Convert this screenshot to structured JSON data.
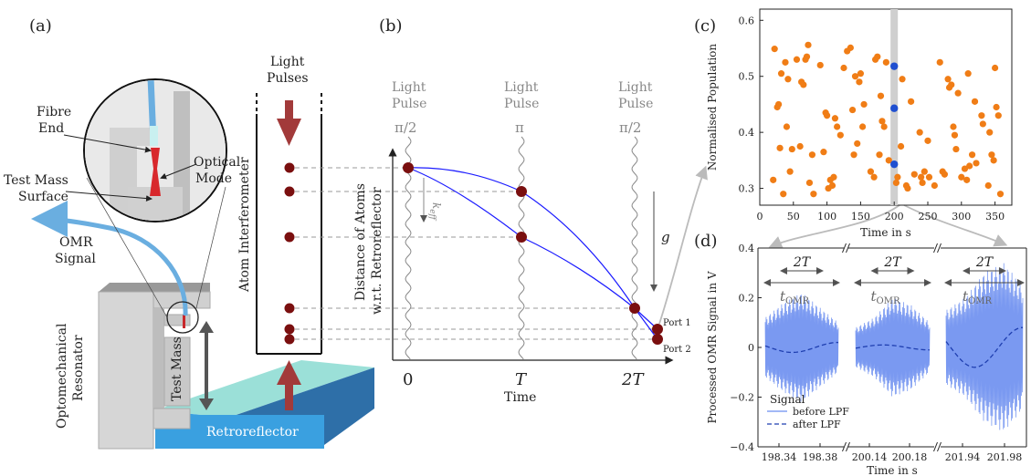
{
  "panels": {
    "a": "(a)",
    "b": "(b)",
    "c": "(c)",
    "d": "(d)"
  },
  "panel_a": {
    "fibre_end": [
      "Fibre",
      "End"
    ],
    "optical_mode": [
      "Optical",
      "Mode"
    ],
    "test_mass_surface": [
      "Test Mass",
      "Surface"
    ],
    "omr_signal": [
      "OMR",
      "Signal"
    ],
    "optomechanical_resonator": [
      "Optomechanical",
      "Resonator"
    ],
    "test_mass": "Test Mass",
    "retroreflector": "Retroreflector",
    "light_pulses": [
      "Light",
      "Pulses"
    ],
    "atom_interferometer": "Atom Interferometer"
  },
  "panel_b": {
    "pulses": [
      {
        "top": "Light",
        "mid": "Pulse",
        "phase": "π/2"
      },
      {
        "top": "Light",
        "mid": "Pulse",
        "phase": "π"
      },
      {
        "top": "Light",
        "mid": "Pulse",
        "phase": "π/2"
      }
    ],
    "ylabel": [
      "Distance of Atoms",
      "w.r.t. Retroreflector"
    ],
    "xlabel": "Time",
    "xticks": [
      "0",
      "T",
      "2T"
    ],
    "keff": "k",
    "keff_sub": "eff",
    "g": "g",
    "port1": "Port 1",
    "port2": "Port 2"
  },
  "colors": {
    "atom": "#7a0f0f",
    "arrow_red": "#a23a3a",
    "blue_line": "#1a1aff",
    "retro_blue": "#3aa0e0",
    "retro_top": "#9be0d8",
    "fibre": "#6aaee0",
    "orange": "#f07d16",
    "blue_dot": "#1f4fd0",
    "signal_blue": "#6b8ef0"
  },
  "chart_data": [
    {
      "id": "c",
      "type": "scatter",
      "xlabel": "Time in s",
      "ylabel": "Normalised Population",
      "xlim": [
        0,
        375
      ],
      "ylim": [
        0.27,
        0.62
      ],
      "xticks": [
        0,
        50,
        100,
        150,
        200,
        250,
        300,
        350
      ],
      "yticks": [
        0.3,
        0.4,
        0.5,
        0.6
      ],
      "highlight_x": 200,
      "series": [
        {
          "points": [
            [
              20,
              0.315
            ],
            [
              22,
              0.549
            ],
            [
              26,
              0.445
            ],
            [
              28,
              0.45
            ],
            [
              30,
              0.372
            ],
            [
              32,
              0.505
            ],
            [
              35,
              0.29
            ],
            [
              38,
              0.525
            ],
            [
              40,
              0.41
            ],
            [
              42,
              0.495
            ],
            [
              45,
              0.33
            ],
            [
              48,
              0.37
            ],
            [
              55,
              0.53
            ],
            [
              60,
              0.375
            ],
            [
              62,
              0.49
            ],
            [
              65,
              0.485
            ],
            [
              68,
              0.53
            ],
            [
              70,
              0.535
            ],
            [
              72,
              0.556
            ],
            [
              74,
              0.31
            ],
            [
              78,
              0.36
            ],
            [
              80,
              0.29
            ],
            [
              90,
              0.52
            ],
            [
              95,
              0.365
            ],
            [
              98,
              0.435
            ],
            [
              100,
              0.43
            ],
            [
              102,
              0.3
            ],
            [
              105,
              0.315
            ],
            [
              108,
              0.305
            ],
            [
              110,
              0.32
            ],
            [
              112,
              0.425
            ],
            [
              115,
              0.41
            ],
            [
              120,
              0.395
            ],
            [
              125,
              0.515
            ],
            [
              130,
              0.545
            ],
            [
              135,
              0.551
            ],
            [
              138,
              0.44
            ],
            [
              140,
              0.36
            ],
            [
              142,
              0.5
            ],
            [
              145,
              0.38
            ],
            [
              148,
              0.49
            ],
            [
              150,
              0.505
            ],
            [
              153,
              0.41
            ],
            [
              155,
              0.45
            ],
            [
              165,
              0.33
            ],
            [
              170,
              0.32
            ],
            [
              172,
              0.53
            ],
            [
              175,
              0.535
            ],
            [
              178,
              0.36
            ],
            [
              180,
              0.465
            ],
            [
              182,
              0.42
            ],
            [
              185,
              0.41
            ],
            [
              188,
              0.525
            ],
            [
              192,
              0.35
            ],
            [
              203,
              0.31
            ],
            [
              205,
              0.32
            ],
            [
              210,
              0.375
            ],
            [
              212,
              0.495
            ],
            [
              218,
              0.305
            ],
            [
              220,
              0.3
            ],
            [
              225,
              0.455
            ],
            [
              230,
              0.325
            ],
            [
              238,
              0.4
            ],
            [
              240,
              0.32
            ],
            [
              242,
              0.31
            ],
            [
              245,
              0.33
            ],
            [
              250,
              0.385
            ],
            [
              252,
              0.32
            ],
            [
              260,
              0.305
            ],
            [
              268,
              0.525
            ],
            [
              272,
              0.33
            ],
            [
              275,
              0.325
            ],
            [
              280,
              0.495
            ],
            [
              282,
              0.48
            ],
            [
              285,
              0.485
            ],
            [
              288,
              0.41
            ],
            [
              290,
              0.395
            ],
            [
              292,
              0.37
            ],
            [
              295,
              0.47
            ],
            [
              300,
              0.32
            ],
            [
              305,
              0.335
            ],
            [
              308,
              0.315
            ],
            [
              310,
              0.505
            ],
            [
              312,
              0.34
            ],
            [
              316,
              0.36
            ],
            [
              320,
              0.455
            ],
            [
              322,
              0.345
            ],
            [
              330,
              0.43
            ],
            [
              332,
              0.415
            ],
            [
              340,
              0.305
            ],
            [
              342,
              0.4
            ],
            [
              345,
              0.36
            ],
            [
              348,
              0.35
            ],
            [
              350,
              0.515
            ],
            [
              352,
              0.445
            ],
            [
              355,
              0.43
            ],
            [
              358,
              0.29
            ]
          ]
        },
        {
          "highlight": true,
          "points": [
            [
              200,
              0.518
            ],
            [
              200,
              0.443
            ],
            [
              200,
              0.343
            ]
          ]
        }
      ]
    },
    {
      "id": "d",
      "type": "line",
      "xlabel": "Time in s",
      "ylabel": "Processed OMR Signal in V",
      "ylim": [
        -0.4,
        0.4
      ],
      "yticks": [
        "0.4",
        "0.2",
        "0",
        "−0.2",
        "−0.4"
      ],
      "xtick_labels": [
        "198.34",
        "198.38",
        "200.14",
        "200.18",
        "201.94",
        "201.98"
      ],
      "annotations": {
        "two_t": "2T",
        "t_omr": "t",
        "t_omr_sub": "OMR"
      },
      "legend": {
        "title": "Signal",
        "entries": [
          {
            "name": "before LPF",
            "style": "solid"
          },
          {
            "name": "after LPF",
            "style": "dashed"
          }
        ]
      },
      "segments": [
        {
          "amp_shape": [
            0.12,
            0.18,
            0.22,
            0.16,
            0.1
          ],
          "lpf_amp": -0.02
        },
        {
          "amp_shape": [
            0.08,
            0.12,
            0.2,
            0.17,
            0.1
          ],
          "lpf_amp": 0.01
        },
        {
          "amp_shape": [
            0.15,
            0.2,
            0.3,
            0.34,
            0.25
          ],
          "lpf_amp": -0.08
        }
      ]
    }
  ]
}
